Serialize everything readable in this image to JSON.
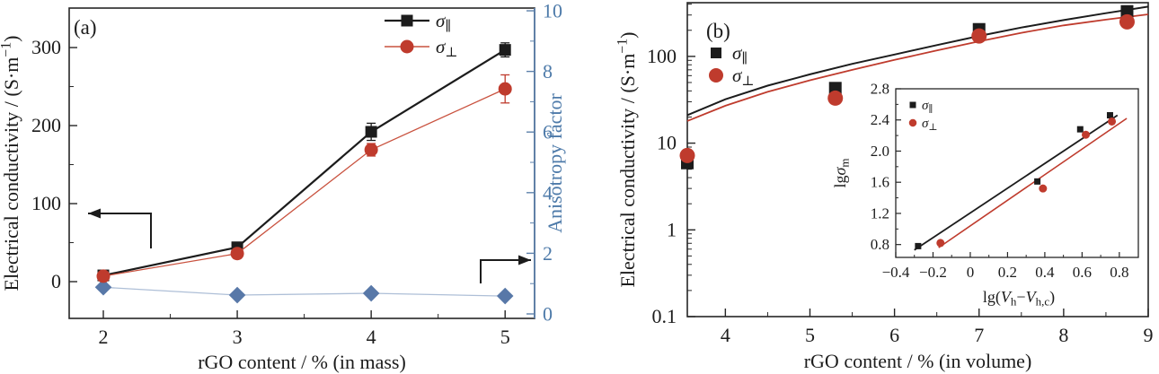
{
  "colors": {
    "black": "#1c1c1c",
    "red": "#bf3b2d",
    "red_line": "#c9523f",
    "blue_marker": "#5878a8",
    "blue_line": "#aebfd7",
    "blue_text": "#4d7aa9",
    "blue_spine": "#5d81ab",
    "frame": "#262626",
    "background": "#ffffff"
  },
  "chart_data": [
    {
      "id": "panel-a",
      "type": "line",
      "tag": "(a)",
      "x_label": "rGO content / % (in mass)",
      "y_left_label_parts": [
        {
          "t": "Electrical conductivity / (S·m"
        },
        {
          "t": "−1",
          "sup": true
        },
        {
          "t": ")"
        }
      ],
      "y_right_label": "Anisotropy factor",
      "x_ticks": [
        2,
        3,
        4,
        5
      ],
      "x_tick_labels": [
        "2",
        "3",
        "4",
        "5"
      ],
      "x_minor_ticks": [
        2.5,
        3.5,
        4.5
      ],
      "x_range": [
        1.745,
        5.22
      ],
      "y_left_ticks": [
        0,
        100,
        200,
        300
      ],
      "y_left_tick_labels": [
        "0",
        "100",
        "200",
        "300"
      ],
      "y_left_minor_ticks": [
        50,
        150,
        250
      ],
      "y_left_range": [
        -47.1,
        350.6
      ],
      "y_right_ticks": [
        0,
        2,
        4,
        6,
        8,
        10
      ],
      "y_right_tick_labels": [
        "0",
        "2",
        "4",
        "6",
        "8",
        "10"
      ],
      "y_right_minor_ticks": [
        1,
        3,
        5,
        7,
        9
      ],
      "y_right_range": [
        -0.148,
        10.09
      ],
      "legend": [
        {
          "series": "sigma-parallel",
          "marker": "square",
          "color": "black",
          "line": true,
          "label_parts": [
            {
              "t": "σ",
              "it": true
            },
            {
              "t": "∥",
              "sub": true
            }
          ]
        },
        {
          "series": "sigma-perpendicular",
          "marker": "circle",
          "color": "red",
          "line": true,
          "label_parts": [
            {
              "t": "σ",
              "it": true
            },
            {
              "t": "⊥",
              "sub": true
            }
          ]
        }
      ],
      "series": [
        {
          "name": "anisotropy-factor",
          "axis": "right",
          "marker": "diamond",
          "color": "blue",
          "x": [
            2,
            3,
            4,
            5
          ],
          "y": [
            0.88,
            0.62,
            0.68,
            0.59
          ]
        },
        {
          "name": "sigma-parallel",
          "axis": "left",
          "marker": "square",
          "color": "black",
          "x": [
            2,
            3,
            4,
            5
          ],
          "y": [
            8,
            44,
            192,
            297
          ],
          "y_err": [
            4,
            5,
            11,
            9
          ]
        },
        {
          "name": "sigma-perpendicular",
          "axis": "left",
          "marker": "circle",
          "color": "red",
          "x": [
            2,
            3,
            4,
            5
          ],
          "y": [
            7,
            36,
            169,
            247
          ],
          "y_err": [
            4,
            6,
            8,
            18
          ]
        }
      ],
      "annotations": [
        {
          "name": "left-axis-arrow",
          "points": [
            [
              168,
              277
            ],
            [
              168,
              238
            ],
            [
              98,
              238
            ]
          ]
        },
        {
          "name": "right-axis-arrow",
          "points": [
            [
              535,
              316
            ],
            [
              535,
              290
            ],
            [
              591,
              290
            ]
          ]
        }
      ]
    },
    {
      "id": "panel-b",
      "type": "scatter",
      "tag": "(b)",
      "x_label": "rGO content / % (in volume)",
      "y_label_parts": [
        {
          "t": "Electrical conductivity / (S·m"
        },
        {
          "t": "−1",
          "sup": true
        },
        {
          "t": ")"
        }
      ],
      "x_ticks": [
        4,
        5,
        6,
        7,
        8,
        9
      ],
      "x_tick_labels": [
        "4",
        "5",
        "6",
        "7",
        "8",
        "9"
      ],
      "x_minor_ticks": [
        4.5,
        5.5,
        6.5,
        7.5,
        8.5
      ],
      "x_range": [
        3.55,
        9.0
      ],
      "y_scale": "log",
      "y_ticks": [
        0.1,
        1,
        10,
        100
      ],
      "y_tick_labels": [
        "0.1",
        "1",
        "10",
        "100"
      ],
      "y_minor_ticks": [
        0.2,
        0.3,
        0.4,
        0.5,
        0.6,
        0.7,
        0.8,
        0.9,
        2,
        3,
        4,
        5,
        6,
        7,
        8,
        9,
        20,
        30,
        40,
        50,
        60,
        70,
        80,
        90,
        200,
        300,
        400
      ],
      "y_range": [
        0.1,
        416
      ],
      "legend": [
        {
          "series": "sigma-parallel",
          "marker": "square",
          "color": "black",
          "line": false,
          "label_parts": [
            {
              "t": "σ",
              "it": true
            },
            {
              "t": "∥",
              "sub": true
            }
          ]
        },
        {
          "series": "sigma-perpendicular",
          "marker": "circle",
          "color": "red",
          "line": false,
          "label_parts": [
            {
              "t": "σ",
              "it": true
            },
            {
              "t": "⊥",
              "sub": true
            }
          ]
        }
      ],
      "series": [
        {
          "name": "sigma-parallel",
          "marker": "square",
          "color": "black",
          "x": [
            3.55,
            5.3,
            7.0,
            8.75
          ],
          "y": [
            5.9,
            43,
            205,
            330
          ]
        },
        {
          "name": "sigma-perpendicular",
          "marker": "circle",
          "color": "red",
          "x": [
            3.55,
            5.3,
            7.0,
            8.75
          ],
          "y": [
            7.2,
            33,
            172,
            250
          ]
        }
      ],
      "fits": [
        {
          "name": "fit-sigma-parallel",
          "color": "black",
          "x": [
            3.55,
            4,
            4.5,
            5,
            5.5,
            6,
            6.5,
            7,
            7.5,
            8,
            8.5,
            9
          ],
          "y": [
            21,
            32,
            46,
            62,
            82,
            105,
            135,
            172,
            215,
            262,
            315,
            375
          ]
        },
        {
          "name": "fit-sigma-perpendicular",
          "color": "red",
          "x": [
            3.55,
            4,
            4.5,
            5,
            5.5,
            6,
            6.5,
            7,
            7.5,
            8,
            8.5,
            9
          ],
          "y": [
            18,
            27,
            39,
            53,
            70,
            91,
            117,
            149,
            187,
            228,
            265,
            305
          ]
        }
      ]
    },
    {
      "id": "panel-b-inset",
      "type": "scatter",
      "x_label_parts": [
        {
          "t": "lg("
        },
        {
          "t": "V",
          "it": true
        },
        {
          "t": "h",
          "sub": true
        },
        {
          "t": "−"
        },
        {
          "t": "V",
          "it": true
        },
        {
          "t": "h,c",
          "sub": true
        },
        {
          "t": ")"
        }
      ],
      "y_label_parts": [
        {
          "t": "lg"
        },
        {
          "t": "σ",
          "it": true
        },
        {
          "t": "m",
          "sub": true
        }
      ],
      "x_ticks": [
        -0.4,
        -0.2,
        0,
        0.2,
        0.4,
        0.6,
        0.8
      ],
      "x_tick_labels": [
        "−0.4",
        "−0.2",
        "0",
        "0.2",
        "0.4",
        "0.6",
        "0.8"
      ],
      "x_minor_ticks": [
        -0.3,
        -0.1,
        0.1,
        0.3,
        0.5,
        0.7
      ],
      "x_range": [
        -0.4,
        0.902
      ],
      "y_ticks": [
        0.8,
        1.2,
        1.6,
        2.0,
        2.4,
        2.8
      ],
      "y_tick_labels": [
        "0.8",
        "1.2",
        "1.6",
        "2.0",
        "2.4",
        "2.8"
      ],
      "y_minor_ticks": [
        1.0,
        1.4,
        1.8,
        2.2,
        2.6
      ],
      "y_range": [
        0.635,
        2.8
      ],
      "legend": [
        {
          "series": "sigma-parallel",
          "marker": "square",
          "color": "black",
          "line": false,
          "label_parts": [
            {
              "t": "σ",
              "it": true
            },
            {
              "t": "∥",
              "sub": true
            }
          ]
        },
        {
          "series": "sigma-perpendicular",
          "marker": "circle",
          "color": "red",
          "line": false,
          "label_parts": [
            {
              "t": "σ",
              "it": true
            },
            {
              "t": "⊥",
              "sub": true
            }
          ]
        }
      ],
      "series": [
        {
          "name": "sigma-parallel",
          "marker": "square",
          "color": "black",
          "x": [
            -0.28,
            0.36,
            0.59,
            0.75
          ],
          "y": [
            0.78,
            1.61,
            2.28,
            2.46
          ]
        },
        {
          "name": "sigma-perpendicular",
          "marker": "circle",
          "color": "red",
          "x": [
            -0.16,
            0.39,
            0.62,
            0.76
          ],
          "y": [
            0.82,
            1.52,
            2.21,
            2.38
          ]
        }
      ],
      "fits": [
        {
          "name": "fit-sigma-parallel",
          "color": "black",
          "x": [
            -0.3,
            0.79
          ],
          "y": [
            0.73,
            2.46
          ]
        },
        {
          "name": "fit-sigma-perpendicular",
          "color": "red",
          "x": [
            -0.17,
            0.84
          ],
          "y": [
            0.76,
            2.42
          ]
        }
      ]
    }
  ]
}
